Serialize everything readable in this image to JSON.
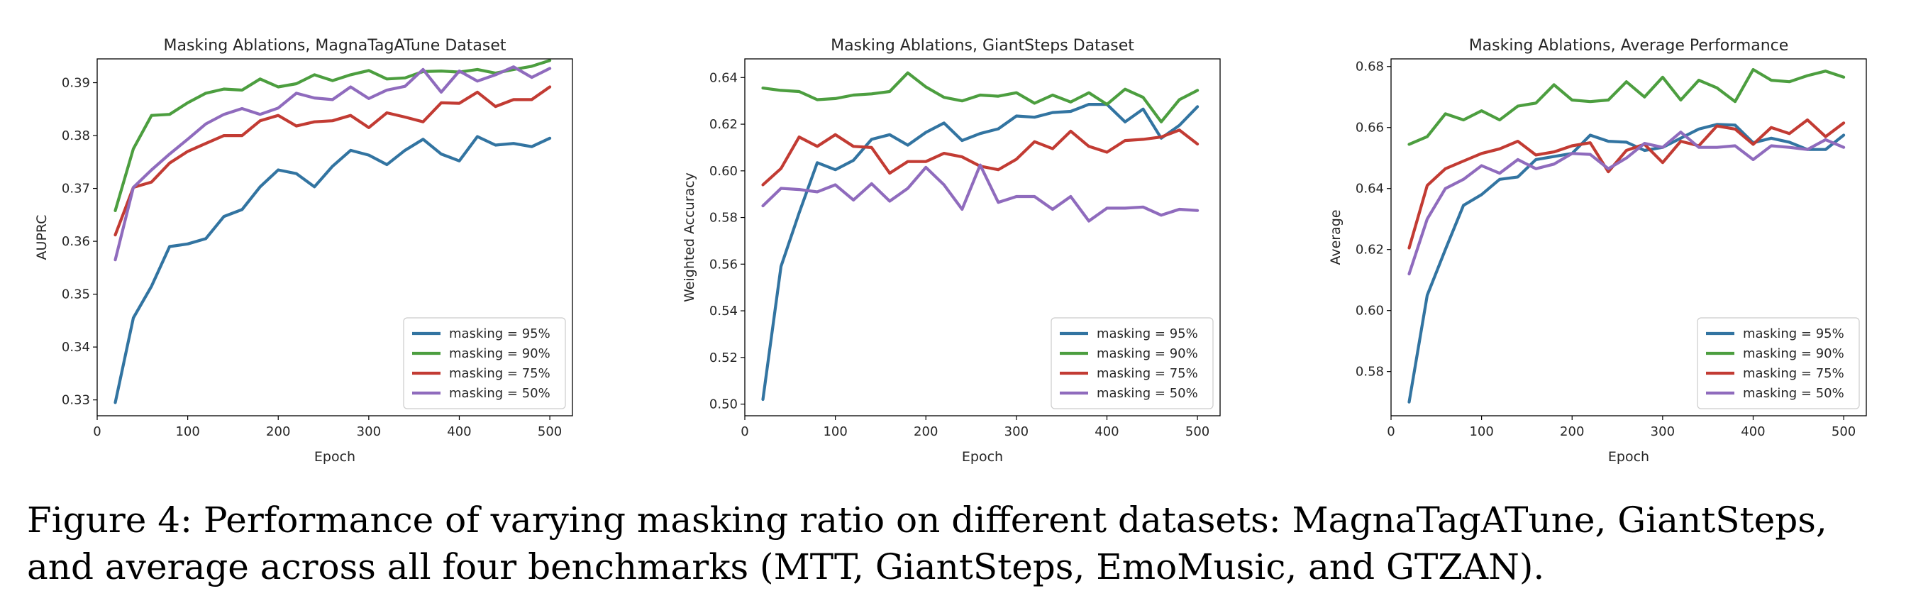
{
  "caption": "Figure 4: Performance of varying masking ratio on different datasets: MagnaTagATune, GiantSteps, and average across all four benchmarks (MTT, GiantSteps, EmoMusic, and GTZAN).",
  "colors": {
    "95": "#3274a1",
    "90": "#4c9e3f",
    "75": "#c23b33",
    "50": "#8f6bbd"
  },
  "chart_data": [
    {
      "type": "line",
      "title": "Masking Ablations, MagnaTagATune Dataset",
      "xlabel": "Epoch",
      "ylabel": "AUPRC",
      "xlim": [
        0,
        525
      ],
      "ylim": [
        0.327,
        0.3945
      ],
      "xticks": [
        0,
        100,
        200,
        300,
        400,
        500
      ],
      "yticks": [
        0.33,
        0.34,
        0.35,
        0.36,
        0.37,
        0.38,
        0.39
      ],
      "ytick_decimals": 2,
      "legend": "lower-right",
      "x": [
        20,
        40,
        60,
        80,
        100,
        120,
        140,
        160,
        180,
        200,
        220,
        240,
        260,
        280,
        300,
        320,
        340,
        360,
        380,
        400,
        420,
        440,
        460,
        480,
        500
      ],
      "series": [
        {
          "name": "masking = 95%",
          "color_key": "95",
          "values": [
            0.3295,
            0.3455,
            0.3515,
            0.359,
            0.3595,
            0.3605,
            0.3647,
            0.366,
            0.3703,
            0.3735,
            0.3728,
            0.3703,
            0.3742,
            0.3772,
            0.3763,
            0.3745,
            0.3772,
            0.3793,
            0.3765,
            0.3752,
            0.3798,
            0.3782,
            0.3785,
            0.3779,
            0.3795
          ]
        },
        {
          "name": "masking = 90%",
          "color_key": "90",
          "values": [
            0.3658,
            0.3775,
            0.3838,
            0.384,
            0.3862,
            0.388,
            0.3888,
            0.3886,
            0.3907,
            0.3892,
            0.3898,
            0.3915,
            0.3904,
            0.3915,
            0.3923,
            0.3907,
            0.3909,
            0.3921,
            0.3922,
            0.392,
            0.3925,
            0.3918,
            0.3925,
            0.3931,
            0.3942
          ]
        },
        {
          "name": "masking = 75%",
          "color_key": "75",
          "values": [
            0.3612,
            0.3702,
            0.3712,
            0.3748,
            0.377,
            0.3785,
            0.38,
            0.38,
            0.3828,
            0.3838,
            0.3818,
            0.3826,
            0.3828,
            0.3838,
            0.3815,
            0.3843,
            0.3835,
            0.3826,
            0.3862,
            0.3861,
            0.3882,
            0.3855,
            0.3868,
            0.3868,
            0.3892
          ]
        },
        {
          "name": "masking = 50%",
          "color_key": "50",
          "values": [
            0.3565,
            0.3702,
            0.3735,
            0.3765,
            0.3793,
            0.3822,
            0.384,
            0.3851,
            0.384,
            0.3852,
            0.388,
            0.3871,
            0.3868,
            0.3892,
            0.387,
            0.3886,
            0.3893,
            0.3925,
            0.3882,
            0.3922,
            0.3903,
            0.3915,
            0.393,
            0.391,
            0.3927
          ]
        }
      ]
    },
    {
      "type": "line",
      "title": "Masking Ablations, GiantSteps Dataset",
      "xlabel": "Epoch",
      "ylabel": "Weighted Accuracy",
      "xlim": [
        0,
        525
      ],
      "ylim": [
        0.495,
        0.648
      ],
      "xticks": [
        0,
        100,
        200,
        300,
        400,
        500
      ],
      "yticks": [
        0.5,
        0.52,
        0.54,
        0.56,
        0.58,
        0.6,
        0.62,
        0.64
      ],
      "ytick_decimals": 2,
      "legend": "lower-right",
      "x": [
        20,
        40,
        60,
        80,
        100,
        120,
        140,
        160,
        180,
        200,
        220,
        240,
        260,
        280,
        300,
        320,
        340,
        360,
        380,
        400,
        420,
        440,
        460,
        480,
        500
      ],
      "series": [
        {
          "name": "masking = 95%",
          "color_key": "95",
          "values": [
            0.502,
            0.559,
            0.582,
            0.6035,
            0.6005,
            0.6045,
            0.6135,
            0.6155,
            0.611,
            0.6165,
            0.6205,
            0.613,
            0.616,
            0.618,
            0.6235,
            0.623,
            0.625,
            0.6255,
            0.6285,
            0.6285,
            0.621,
            0.6265,
            0.614,
            0.6195,
            0.6275
          ]
        },
        {
          "name": "masking = 90%",
          "color_key": "90",
          "values": [
            0.6355,
            0.6345,
            0.634,
            0.6305,
            0.631,
            0.6325,
            0.633,
            0.634,
            0.642,
            0.636,
            0.6315,
            0.63,
            0.6325,
            0.632,
            0.6335,
            0.629,
            0.6325,
            0.6295,
            0.6335,
            0.6285,
            0.635,
            0.6315,
            0.621,
            0.6305,
            0.6345
          ]
        },
        {
          "name": "masking = 75%",
          "color_key": "75",
          "values": [
            0.594,
            0.601,
            0.6145,
            0.6105,
            0.6155,
            0.6105,
            0.61,
            0.599,
            0.604,
            0.604,
            0.6075,
            0.606,
            0.602,
            0.6005,
            0.605,
            0.6125,
            0.6095,
            0.617,
            0.6105,
            0.608,
            0.613,
            0.6135,
            0.6145,
            0.6175,
            0.6115
          ]
        },
        {
          "name": "masking = 50%",
          "color_key": "50",
          "values": [
            0.585,
            0.5925,
            0.592,
            0.591,
            0.594,
            0.5875,
            0.5945,
            0.587,
            0.5925,
            0.6015,
            0.594,
            0.5835,
            0.6025,
            0.5865,
            0.589,
            0.589,
            0.5835,
            0.589,
            0.5785,
            0.584,
            0.584,
            0.5845,
            0.581,
            0.5835,
            0.583
          ]
        }
      ]
    },
    {
      "type": "line",
      "title": "Masking Ablations, Average Performance",
      "xlabel": "Epoch",
      "ylabel": "Average",
      "xlim": [
        0,
        525
      ],
      "ylim": [
        0.5655,
        0.6825
      ],
      "xticks": [
        0,
        100,
        200,
        300,
        400,
        500
      ],
      "yticks": [
        0.58,
        0.6,
        0.62,
        0.64,
        0.66,
        0.68
      ],
      "ytick_decimals": 2,
      "legend": "lower-right",
      "x": [
        20,
        40,
        60,
        80,
        100,
        120,
        140,
        160,
        180,
        200,
        220,
        240,
        260,
        280,
        300,
        320,
        340,
        360,
        380,
        400,
        420,
        440,
        460,
        480,
        500
      ],
      "series": [
        {
          "name": "masking = 95%",
          "color_key": "95",
          "values": [
            0.57,
            0.605,
            0.62,
            0.6345,
            0.638,
            0.643,
            0.6438,
            0.6495,
            0.6505,
            0.6515,
            0.6575,
            0.6555,
            0.6552,
            0.6525,
            0.6535,
            0.6565,
            0.6595,
            0.661,
            0.6608,
            0.655,
            0.6565,
            0.6552,
            0.6528,
            0.6528,
            0.6575
          ]
        },
        {
          "name": "masking = 90%",
          "color_key": "90",
          "values": [
            0.6545,
            0.657,
            0.6645,
            0.6625,
            0.6655,
            0.6625,
            0.667,
            0.668,
            0.674,
            0.669,
            0.6685,
            0.669,
            0.675,
            0.67,
            0.6765,
            0.669,
            0.6755,
            0.673,
            0.6685,
            0.679,
            0.6755,
            0.675,
            0.677,
            0.6785,
            0.6765
          ]
        },
        {
          "name": "masking = 75%",
          "color_key": "75",
          "values": [
            0.6205,
            0.641,
            0.6465,
            0.649,
            0.6515,
            0.653,
            0.6555,
            0.651,
            0.652,
            0.654,
            0.655,
            0.6455,
            0.6525,
            0.6545,
            0.6485,
            0.6555,
            0.654,
            0.6605,
            0.6595,
            0.6545,
            0.66,
            0.658,
            0.6625,
            0.657,
            0.6615
          ]
        },
        {
          "name": "masking = 50%",
          "color_key": "50",
          "values": [
            0.612,
            0.63,
            0.64,
            0.643,
            0.6475,
            0.645,
            0.6495,
            0.6465,
            0.648,
            0.6515,
            0.6512,
            0.6465,
            0.65,
            0.6548,
            0.6535,
            0.6585,
            0.6535,
            0.6535,
            0.654,
            0.6495,
            0.654,
            0.6535,
            0.6528,
            0.656,
            0.6535
          ]
        }
      ]
    }
  ]
}
